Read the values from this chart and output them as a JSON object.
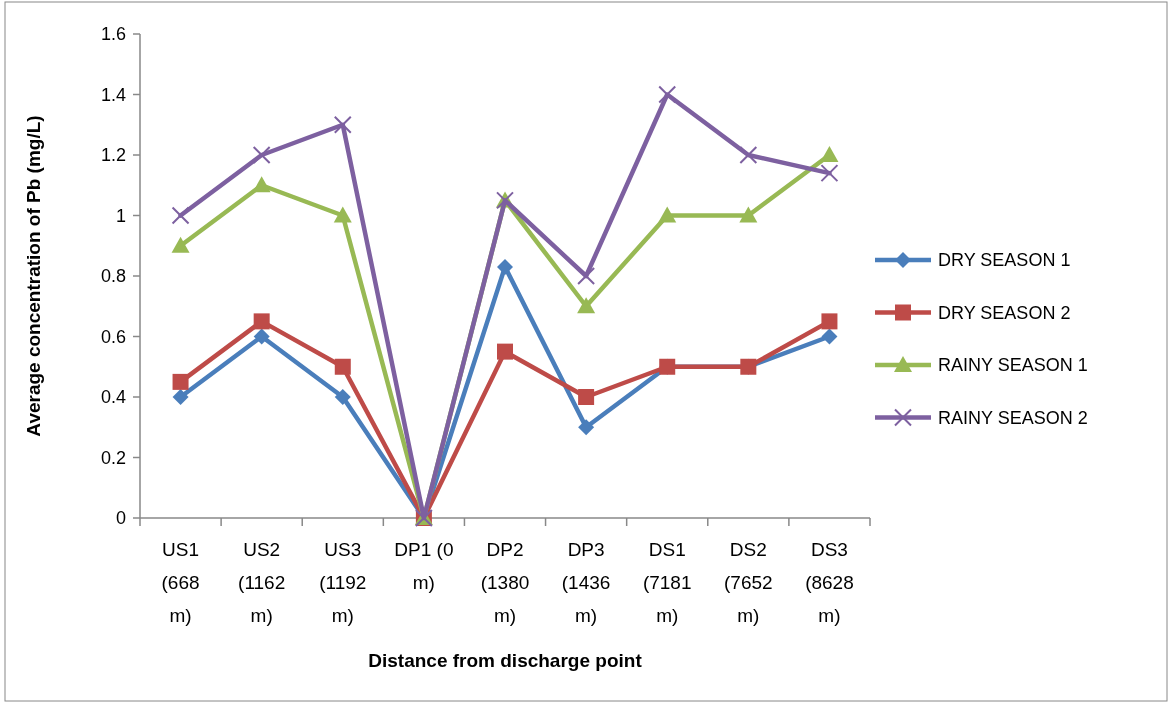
{
  "chart_data": {
    "type": "line",
    "xlabel": "Distance from discharge point",
    "ylabel": "Average concentration of Pb (mg/L)",
    "categories": [
      "US1 (668 m)",
      "US2 (1162 m)",
      "US3 (1192 m)",
      "DP1 (0 m)",
      "DP2 (1380 m)",
      "DP3 (1436 m)",
      "DS1 (7181 m)",
      "DS2 (7652 m)",
      "DS3 (8628 m)"
    ],
    "series": [
      {
        "name": "DRY SEASON 1",
        "color": "#4a7ebb",
        "marker": "diamond",
        "values": [
          0.4,
          0.6,
          0.4,
          0,
          0.83,
          0.3,
          0.5,
          0.5,
          0.6
        ]
      },
      {
        "name": "DRY SEASON 2",
        "color": "#be4b48",
        "marker": "square",
        "values": [
          0.45,
          0.65,
          0.5,
          0,
          0.55,
          0.4,
          0.5,
          0.5,
          0.65
        ]
      },
      {
        "name": "RAINY SEASON 1",
        "color": "#98b954",
        "marker": "triangle",
        "values": [
          0.9,
          1.1,
          1,
          0,
          1.05,
          0.7,
          1,
          1,
          1.2
        ]
      },
      {
        "name": "RAINY SEASON 2",
        "color": "#7d60a0",
        "marker": "cross",
        "values": [
          1,
          1.2,
          1.3,
          0,
          1.05,
          0.8,
          1.4,
          1.2,
          1.14
        ]
      }
    ],
    "ylim": [
      0,
      1.6
    ],
    "yticks": [
      0,
      0.2,
      0.4,
      0.6,
      0.8,
      1,
      1.2,
      1.4,
      1.6
    ],
    "grid": false,
    "legend": "right",
    "line_style": "solid"
  }
}
